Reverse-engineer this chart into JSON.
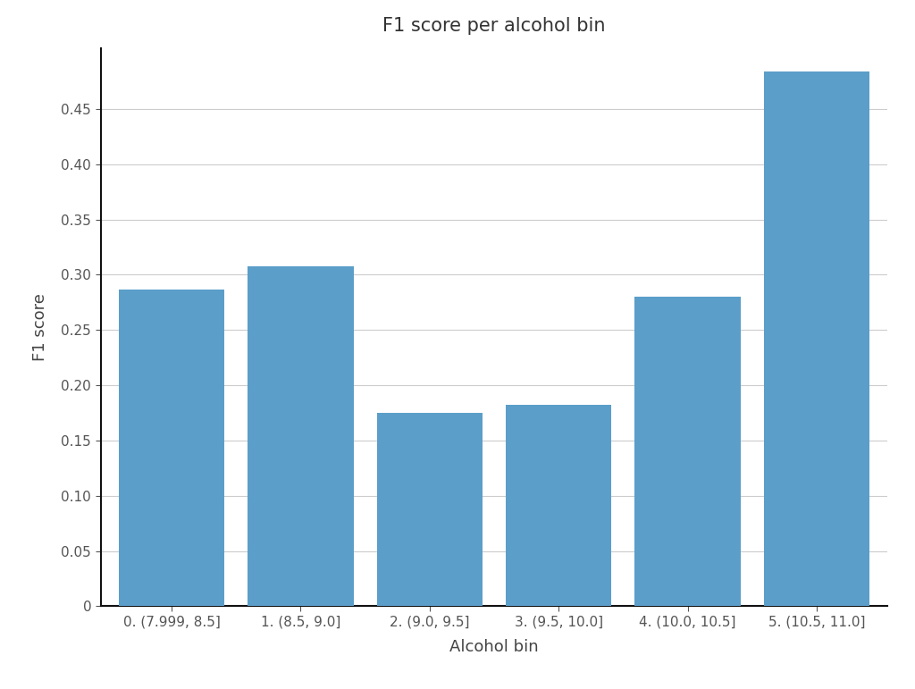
{
  "title": "F1 score per alcohol bin",
  "xlabel": "Alcohol bin",
  "ylabel": "F1 score",
  "categories": [
    "0. (7.999, 8.5]",
    "1. (8.5, 9.0]",
    "2. (9.0, 9.5]",
    "3. (9.5, 10.0]",
    "4. (10.0, 10.5]",
    "5. (10.5, 11.0]"
  ],
  "values": [
    0.287,
    0.308,
    0.175,
    0.182,
    0.28,
    0.484
  ],
  "bar_color": "#5b9ec9",
  "background_color": "#ffffff",
  "ylim": [
    0,
    0.505
  ],
  "yticks": [
    0,
    0.05,
    0.1,
    0.15,
    0.2,
    0.25,
    0.3,
    0.35,
    0.4,
    0.45
  ],
  "grid_color": "#cccccc",
  "title_fontsize": 15,
  "axis_label_fontsize": 13,
  "tick_fontsize": 11,
  "bar_width": 0.82
}
